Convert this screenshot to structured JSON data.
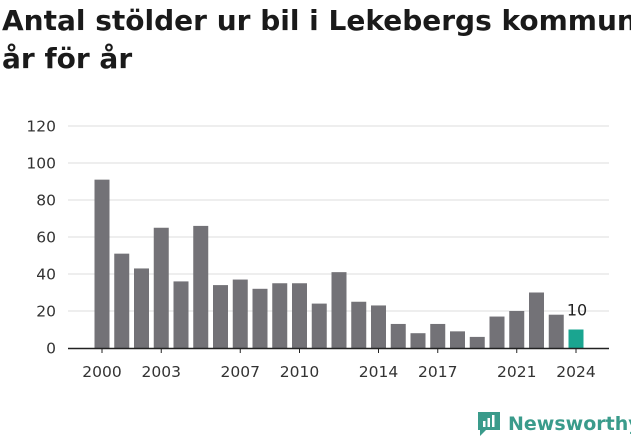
{
  "title_lines": [
    "Antal stölder ur bil i Lekebergs kommun",
    "år för år"
  ],
  "brand": {
    "name": "Newsworthy",
    "icon": "newsworthy-logo-icon"
  },
  "colors": {
    "bar": "#737277",
    "highlight": "#1aa590",
    "grid": "#dddddd",
    "brand": "#3a9b8b"
  },
  "chart_data": {
    "type": "bar",
    "x": [
      2000,
      2001,
      2002,
      2003,
      2004,
      2005,
      2006,
      2007,
      2008,
      2009,
      2010,
      2011,
      2012,
      2013,
      2014,
      2015,
      2016,
      2017,
      2018,
      2019,
      2020,
      2021,
      2022,
      2023,
      2024
    ],
    "values": [
      91,
      51,
      43,
      65,
      36,
      66,
      34,
      37,
      32,
      35,
      35,
      24,
      41,
      25,
      23,
      13,
      8,
      13,
      9,
      6,
      17,
      20,
      30,
      18,
      10
    ],
    "highlight_index": 24,
    "data_labels": [
      {
        "index": 24,
        "text": "10"
      }
    ],
    "x_ticks": [
      "2000",
      "2003",
      "2007",
      "2010",
      "2014",
      "2017",
      "2021",
      "2024"
    ],
    "y_ticks": [
      "0",
      "20",
      "40",
      "60",
      "80",
      "100",
      "120"
    ],
    "ylim": [
      0,
      120
    ],
    "grid": true
  }
}
